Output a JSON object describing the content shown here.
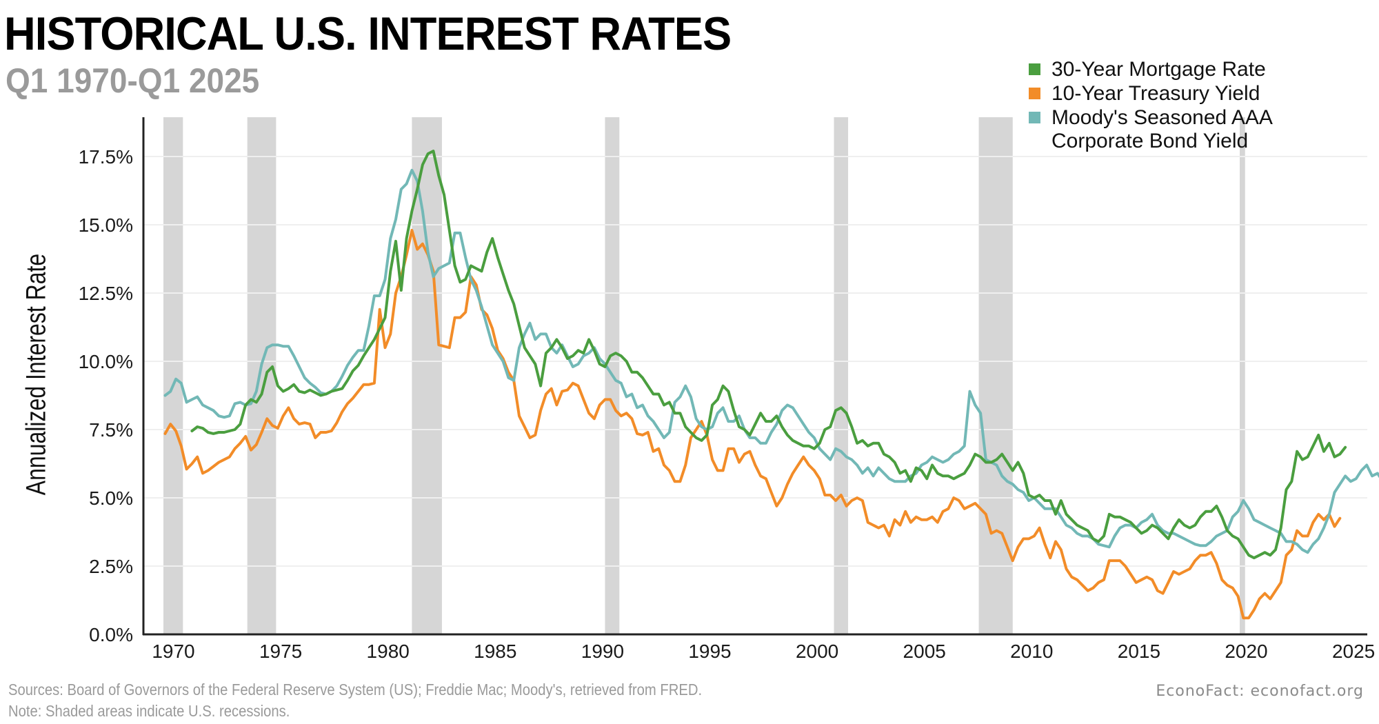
{
  "header": {
    "title": "HISTORICAL U.S. INTEREST RATES",
    "subtitle": "Q1 1970-Q1 2025"
  },
  "legend": [
    {
      "label": "30-Year Mortgage Rate",
      "color": "#4a9e3f"
    },
    {
      "label": "10-Year Treasury Yield",
      "color": "#f28c28"
    },
    {
      "label": "Moody's Seasoned AAA\nCorporate Bond Yield",
      "color": "#72b8b6"
    }
  ],
  "footer": {
    "sources": "Sources: Board of Governors of the Federal Reserve System (US); Freddie Mac; Moody's, retrieved from FRED.",
    "note": "Note: Shaded areas indicate U.S. recessions.",
    "credit": "EconoFact:  econofact.org"
  },
  "chart_data": {
    "type": "line",
    "title": "HISTORICAL U.S. INTEREST RATES",
    "subtitle": "Q1 1970-Q1 2025",
    "xlabel": "",
    "ylabel": "Annualized Interest Rate",
    "x_start": 1970.0,
    "x_step": 0.25,
    "xlim": [
      1969.7,
      2026.0
    ],
    "ylim": [
      0,
      18.8
    ],
    "xticks": [
      1970,
      1975,
      1980,
      1985,
      1990,
      1995,
      2000,
      2005,
      2010,
      2015,
      2020,
      2025
    ],
    "xtick_labels": [
      "1970",
      "1975",
      "1980",
      "1985",
      "1990",
      "1995",
      "2000",
      "2005",
      "2010",
      "2015",
      "2020",
      "2025"
    ],
    "yticks": [
      0,
      2.5,
      5,
      7.5,
      10,
      12.5,
      15,
      17.5
    ],
    "ytick_labels": [
      "0.0%",
      "2.5%",
      "5.0%",
      "7.5%",
      "10.0%",
      "12.5%",
      "15.0%",
      "17.5%"
    ],
    "grid": "horizontal",
    "legend_position": "top-right",
    "recessions": [
      [
        1969.92,
        1970.83
      ],
      [
        1973.83,
        1975.17
      ],
      [
        1981.5,
        1982.9
      ],
      [
        1990.5,
        1991.17
      ],
      [
        2001.17,
        2001.83
      ],
      [
        2007.92,
        2009.5
      ],
      [
        2020.08,
        2020.33
      ]
    ],
    "series": [
      {
        "name": "30-Year Mortgage Rate",
        "color": "#4a9e3f",
        "start": 1971.25,
        "values": [
          7.45,
          7.6,
          7.55,
          7.4,
          7.35,
          7.4,
          7.4,
          7.45,
          7.5,
          7.7,
          8.4,
          8.6,
          8.5,
          8.8,
          9.6,
          9.8,
          9.1,
          8.9,
          9.0,
          9.15,
          8.9,
          8.85,
          8.95,
          8.85,
          8.75,
          8.8,
          8.9,
          8.95,
          9.0,
          9.3,
          9.65,
          9.85,
          10.2,
          10.5,
          10.8,
          11.2,
          11.6,
          13.3,
          14.4,
          12.6,
          14.5,
          15.5,
          16.3,
          17.2,
          17.6,
          17.7,
          16.8,
          16.1,
          14.8,
          13.5,
          12.9,
          13.0,
          13.5,
          13.4,
          13.3,
          14.0,
          14.5,
          13.8,
          13.2,
          12.6,
          12.1,
          11.3,
          10.5,
          10.2,
          9.9,
          9.1,
          10.3,
          10.5,
          10.8,
          10.5,
          10.1,
          10.2,
          10.4,
          10.3,
          10.8,
          10.4,
          9.9,
          9.8,
          10.2,
          10.3,
          10.2,
          10.0,
          9.6,
          9.6,
          9.4,
          9.1,
          8.8,
          8.8,
          8.4,
          8.5,
          8.1,
          8.1,
          7.6,
          7.4,
          7.2,
          7.1,
          7.3,
          8.4,
          8.6,
          9.1,
          8.9,
          8.2,
          7.6,
          7.5,
          7.3,
          7.7,
          8.1,
          7.8,
          7.8,
          8.0,
          7.6,
          7.3,
          7.1,
          7.0,
          6.9,
          6.9,
          6.8,
          7.0,
          7.5,
          7.6,
          8.2,
          8.3,
          8.1,
          7.6,
          7.0,
          7.1,
          6.9,
          7.0,
          7.0,
          6.6,
          6.5,
          6.3,
          5.9,
          6.0,
          5.6,
          6.1,
          6.0,
          5.7,
          6.2,
          5.9,
          5.8,
          5.8,
          5.7,
          5.8,
          5.9,
          6.2,
          6.6,
          6.5,
          6.3,
          6.3,
          6.4,
          6.6,
          6.3,
          6.0,
          6.3,
          5.9,
          5.1,
          5.0,
          5.1,
          4.9,
          4.9,
          4.4,
          4.9,
          4.4,
          4.2,
          4.0,
          3.9,
          3.8,
          3.5,
          3.4,
          3.6,
          4.4,
          4.3,
          4.3,
          4.2,
          4.1,
          3.9,
          3.7,
          3.8,
          4.0,
          3.9,
          3.7,
          3.5,
          3.9,
          4.2,
          4.0,
          3.9,
          4.0,
          4.3,
          4.5,
          4.5,
          4.7,
          4.3,
          3.8,
          3.6,
          3.5,
          3.2,
          2.9,
          2.8,
          2.9,
          3.0,
          2.9,
          3.1,
          3.9,
          5.3,
          5.6,
          6.7,
          6.4,
          6.5,
          6.9,
          7.3,
          6.7,
          7.0,
          6.5,
          6.6,
          6.85
        ]
      },
      {
        "name": "10-Year Treasury Yield",
        "color": "#f28c28",
        "start": 1970.0,
        "values": [
          7.35,
          7.7,
          7.45,
          6.9,
          6.05,
          6.25,
          6.5,
          5.9,
          6.0,
          6.15,
          6.3,
          6.4,
          6.5,
          6.8,
          7.0,
          7.25,
          6.75,
          6.95,
          7.4,
          7.9,
          7.65,
          7.55,
          8.0,
          8.3,
          7.9,
          7.7,
          7.75,
          7.7,
          7.2,
          7.4,
          7.4,
          7.45,
          7.75,
          8.15,
          8.45,
          8.65,
          8.9,
          9.15,
          9.15,
          9.2,
          11.9,
          10.5,
          11.0,
          12.5,
          13.1,
          13.9,
          14.8,
          14.1,
          14.3,
          13.9,
          13.3,
          10.6,
          10.55,
          10.5,
          11.6,
          11.6,
          11.8,
          13.1,
          12.8,
          11.9,
          11.7,
          11.2,
          10.4,
          10.1,
          9.6,
          9.3,
          8.0,
          7.6,
          7.2,
          7.3,
          8.2,
          8.8,
          9.0,
          8.4,
          8.9,
          8.95,
          9.2,
          9.1,
          8.6,
          8.1,
          7.9,
          8.4,
          8.6,
          8.6,
          8.2,
          8.0,
          8.1,
          7.9,
          7.35,
          7.3,
          7.4,
          6.7,
          6.8,
          6.2,
          6.0,
          5.6,
          5.6,
          6.2,
          7.2,
          7.5,
          7.8,
          7.3,
          6.4,
          6.0,
          6.0,
          6.8,
          6.8,
          6.3,
          6.6,
          6.7,
          6.2,
          5.8,
          5.7,
          5.2,
          4.7,
          5.0,
          5.5,
          5.9,
          6.2,
          6.5,
          6.2,
          6.0,
          5.7,
          5.1,
          5.1,
          4.9,
          5.1,
          4.7,
          4.9,
          5.0,
          4.9,
          4.1,
          4.0,
          3.9,
          4.0,
          3.6,
          4.2,
          4.0,
          4.5,
          4.1,
          4.3,
          4.2,
          4.2,
          4.3,
          4.1,
          4.5,
          4.6,
          5.0,
          4.9,
          4.6,
          4.7,
          4.8,
          4.6,
          4.4,
          3.7,
          3.8,
          3.7,
          3.2,
          2.7,
          3.2,
          3.5,
          3.5,
          3.6,
          3.9,
          3.3,
          2.8,
          3.4,
          3.1,
          2.4,
          2.1,
          2.0,
          1.8,
          1.6,
          1.7,
          1.9,
          2.0,
          2.7,
          2.7,
          2.7,
          2.5,
          2.2,
          1.9,
          2.0,
          2.1,
          2.0,
          1.6,
          1.5,
          1.9,
          2.3,
          2.2,
          2.3,
          2.4,
          2.7,
          2.9,
          2.9,
          3.0,
          2.6,
          2.0,
          1.8,
          1.7,
          1.4,
          0.6,
          0.6,
          0.9,
          1.3,
          1.5,
          1.3,
          1.6,
          1.9,
          2.9,
          3.1,
          3.8,
          3.6,
          3.6,
          4.1,
          4.4,
          4.2,
          4.4,
          3.95,
          4.25
        ]
      },
      {
        "name": "Moody's Seasoned AAA Corporate Bond Yield",
        "color": "#72b8b6",
        "start": 1970.0,
        "values": [
          8.75,
          8.9,
          9.35,
          9.2,
          8.5,
          8.6,
          8.7,
          8.4,
          8.3,
          8.2,
          8.0,
          7.95,
          8.0,
          8.45,
          8.5,
          8.4,
          8.45,
          8.9,
          9.9,
          10.5,
          10.6,
          10.6,
          10.55,
          10.55,
          10.2,
          9.8,
          9.4,
          9.2,
          9.05,
          8.85,
          8.8,
          8.9,
          9.1,
          9.45,
          9.85,
          10.15,
          10.4,
          10.4,
          11.3,
          12.4,
          12.4,
          13.0,
          14.5,
          15.2,
          16.3,
          16.5,
          17.0,
          16.6,
          15.5,
          14.0,
          13.1,
          13.4,
          13.5,
          13.6,
          14.7,
          14.7,
          13.8,
          13.0,
          12.6,
          12.0,
          11.3,
          10.6,
          10.3,
          10.0,
          9.4,
          9.3,
          10.5,
          11.0,
          11.4,
          10.8,
          11.0,
          11.0,
          10.5,
          10.3,
          10.6,
          10.2,
          9.8,
          9.9,
          10.2,
          10.3,
          10.5,
          10.1,
          9.9,
          9.6,
          9.3,
          9.2,
          8.7,
          8.8,
          8.3,
          8.4,
          8.0,
          7.8,
          7.5,
          7.2,
          7.4,
          8.5,
          8.7,
          9.1,
          8.7,
          7.9,
          7.6,
          7.5,
          7.6,
          8.1,
          8.3,
          7.8,
          7.8,
          8.0,
          7.5,
          7.2,
          7.2,
          7.0,
          7.0,
          7.4,
          7.7,
          8.2,
          8.4,
          8.3,
          8.0,
          7.7,
          7.4,
          7.2,
          6.8,
          6.6,
          6.4,
          6.8,
          6.7,
          6.5,
          6.4,
          6.2,
          5.9,
          6.1,
          5.8,
          6.1,
          5.9,
          5.7,
          5.6,
          5.6,
          5.6,
          5.8,
          5.9,
          6.2,
          6.3,
          6.5,
          6.4,
          6.3,
          6.4,
          6.6,
          6.7,
          6.9,
          8.9,
          8.4,
          8.1,
          6.4,
          6.3,
          6.2,
          5.8,
          5.6,
          5.5,
          5.3,
          5.2,
          4.9,
          5.0,
          4.8,
          4.6,
          4.6,
          4.6,
          4.3,
          4.0,
          3.9,
          3.7,
          3.6,
          3.6,
          3.5,
          3.3,
          3.25,
          3.2,
          3.6,
          3.9,
          4.0,
          4.0,
          3.9,
          4.1,
          4.2,
          4.4,
          4.0,
          3.8,
          3.7,
          3.7,
          3.6,
          3.5,
          3.4,
          3.3,
          3.25,
          3.25,
          3.4,
          3.6,
          3.7,
          3.8,
          4.3,
          4.5,
          4.9,
          4.6,
          4.2,
          4.1,
          4.0,
          3.9,
          3.8,
          3.7,
          3.4,
          3.4,
          3.3,
          3.1,
          3.0,
          3.3,
          3.5,
          3.9,
          4.4,
          5.2,
          5.5,
          5.8,
          5.6,
          5.7,
          6.0,
          6.2,
          5.8,
          5.9,
          5.6,
          5.7
        ]
      }
    ]
  }
}
